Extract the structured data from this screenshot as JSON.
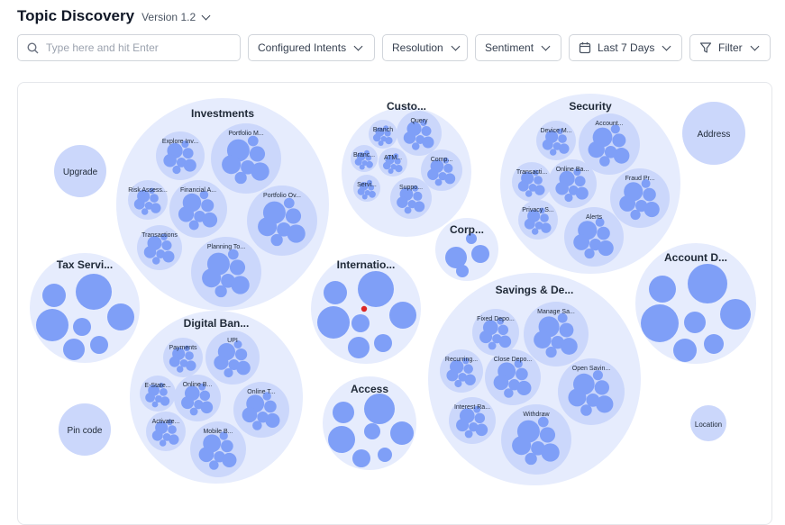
{
  "header": {
    "title": "Topic Discovery",
    "version": "Version 1.2"
  },
  "toolbar": {
    "search_placeholder": "Type here and hit Enter",
    "intents_label": "Configured Intents",
    "resolution_label": "Resolution",
    "sentiment_label": "Sentiment",
    "date_label": "Last 7 Days",
    "filter_label": "Filter"
  },
  "colors": {
    "outer": "#e6ecfd",
    "group": "#cbd7fb",
    "leaf": "#7f9ff7",
    "label": "#1f2937"
  },
  "clusters": {
    "investments": {
      "label": "Investments",
      "subs": [
        "Explore Inv...",
        "Portfolio M...",
        "Risk Assess...",
        "Financial A...",
        "Portfolio Ov...",
        "Transactions",
        "Planning To..."
      ]
    },
    "customer": {
      "label": "Custo...",
      "subs": [
        "Branch",
        "Query",
        "Branc...",
        "ATM...",
        "Comp...",
        "Servi...",
        "Suppo..."
      ]
    },
    "security": {
      "label": "Security",
      "subs": [
        "Device M...",
        "Account...",
        "Transacti...",
        "Online Ba...",
        "Fraud Pr...",
        "Privacy S...",
        "Alerts"
      ]
    },
    "address": {
      "label": "Address"
    },
    "upgrade": {
      "label": "Upgrade"
    },
    "corp": {
      "label": "Corp..."
    },
    "tax": {
      "label": "Tax Servi..."
    },
    "international": {
      "label": "Internatio..."
    },
    "account_d": {
      "label": "Account D..."
    },
    "savings": {
      "label": "Savings & De...",
      "subs": [
        "Fixed Depo...",
        "Manage Sa...",
        "Recurring...",
        "Close Depo...",
        "Open Savin...",
        "Interest Ra...",
        "Withdraw"
      ]
    },
    "digital": {
      "label": "Digital Ban...",
      "subs": [
        "Payments",
        "UPI",
        "E-State...",
        "Online B...",
        "Online T...",
        "Activate...",
        "Mobile B..."
      ]
    },
    "access": {
      "label": "Access"
    },
    "pin": {
      "label": "Pin code"
    },
    "location": {
      "label": "Location"
    }
  }
}
